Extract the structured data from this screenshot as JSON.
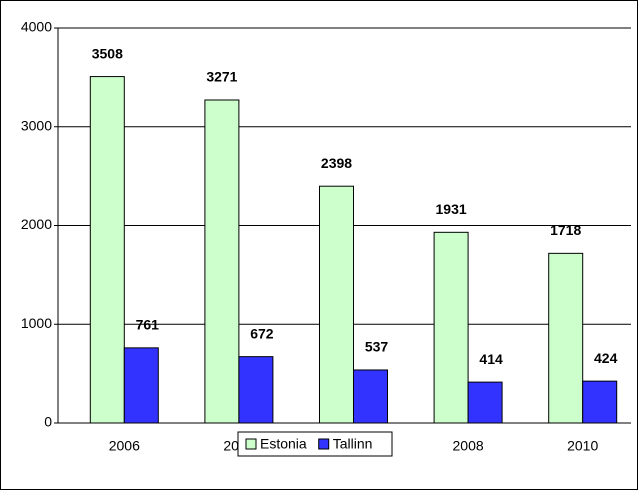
{
  "chart_data": {
    "type": "bar",
    "categories": [
      "2006",
      "2007",
      "2008",
      "2008",
      "2010"
    ],
    "series": [
      {
        "name": "Estonia",
        "color": "#ccffcc",
        "values": [
          3508,
          3271,
          2398,
          1931,
          1718
        ]
      },
      {
        "name": "Tallinn",
        "color": "#3333ff",
        "values": [
          761,
          672,
          537,
          414,
          424
        ]
      }
    ],
    "ylim": [
      0,
      4000
    ],
    "yticks": [
      0,
      1000,
      2000,
      3000,
      4000
    ],
    "grid": true,
    "legend": "bottom"
  }
}
